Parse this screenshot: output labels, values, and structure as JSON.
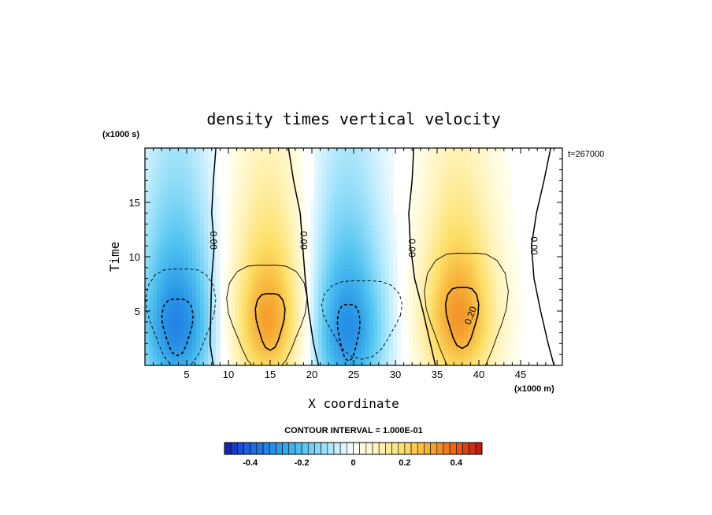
{
  "chart_data": {
    "type": "heatmap",
    "title": "density times vertical velocity",
    "xlabel": "X coordinate",
    "ylabel": "Time",
    "x_unit": "(x1000 m)",
    "y_unit": "(x1000 s)",
    "time_stamp": "t=267000",
    "xlim": [
      0,
      50
    ],
    "ylim": [
      0,
      20
    ],
    "x_ticks": [
      5,
      10,
      15,
      20,
      25,
      30,
      35,
      40,
      45
    ],
    "y_ticks": [
      5,
      10,
      15
    ],
    "contour_interval_text": "CONTOUR INTERVAL = 1.000E-01",
    "colorbar": {
      "min": -0.5,
      "max": 0.5,
      "ticks": [
        -0.4,
        -0.2,
        0,
        0.2,
        0.4
      ],
      "tick_labels": [
        "-0.4",
        "-0.2",
        "0",
        "0.2",
        "0.4"
      ]
    },
    "features": [
      {
        "x": 3.8,
        "y": 3.8,
        "amplitude": -0.34
      },
      {
        "x": 14.8,
        "y": 4.3,
        "amplitude": 0.32
      },
      {
        "x": 24.2,
        "y": 3.4,
        "amplitude": -0.32
      },
      {
        "x": 37.6,
        "y": 4.6,
        "amplitude": 0.33
      }
    ],
    "contour_labels": [
      "0.00",
      "0.00",
      "0.00",
      "0.00",
      "0.20"
    ]
  }
}
